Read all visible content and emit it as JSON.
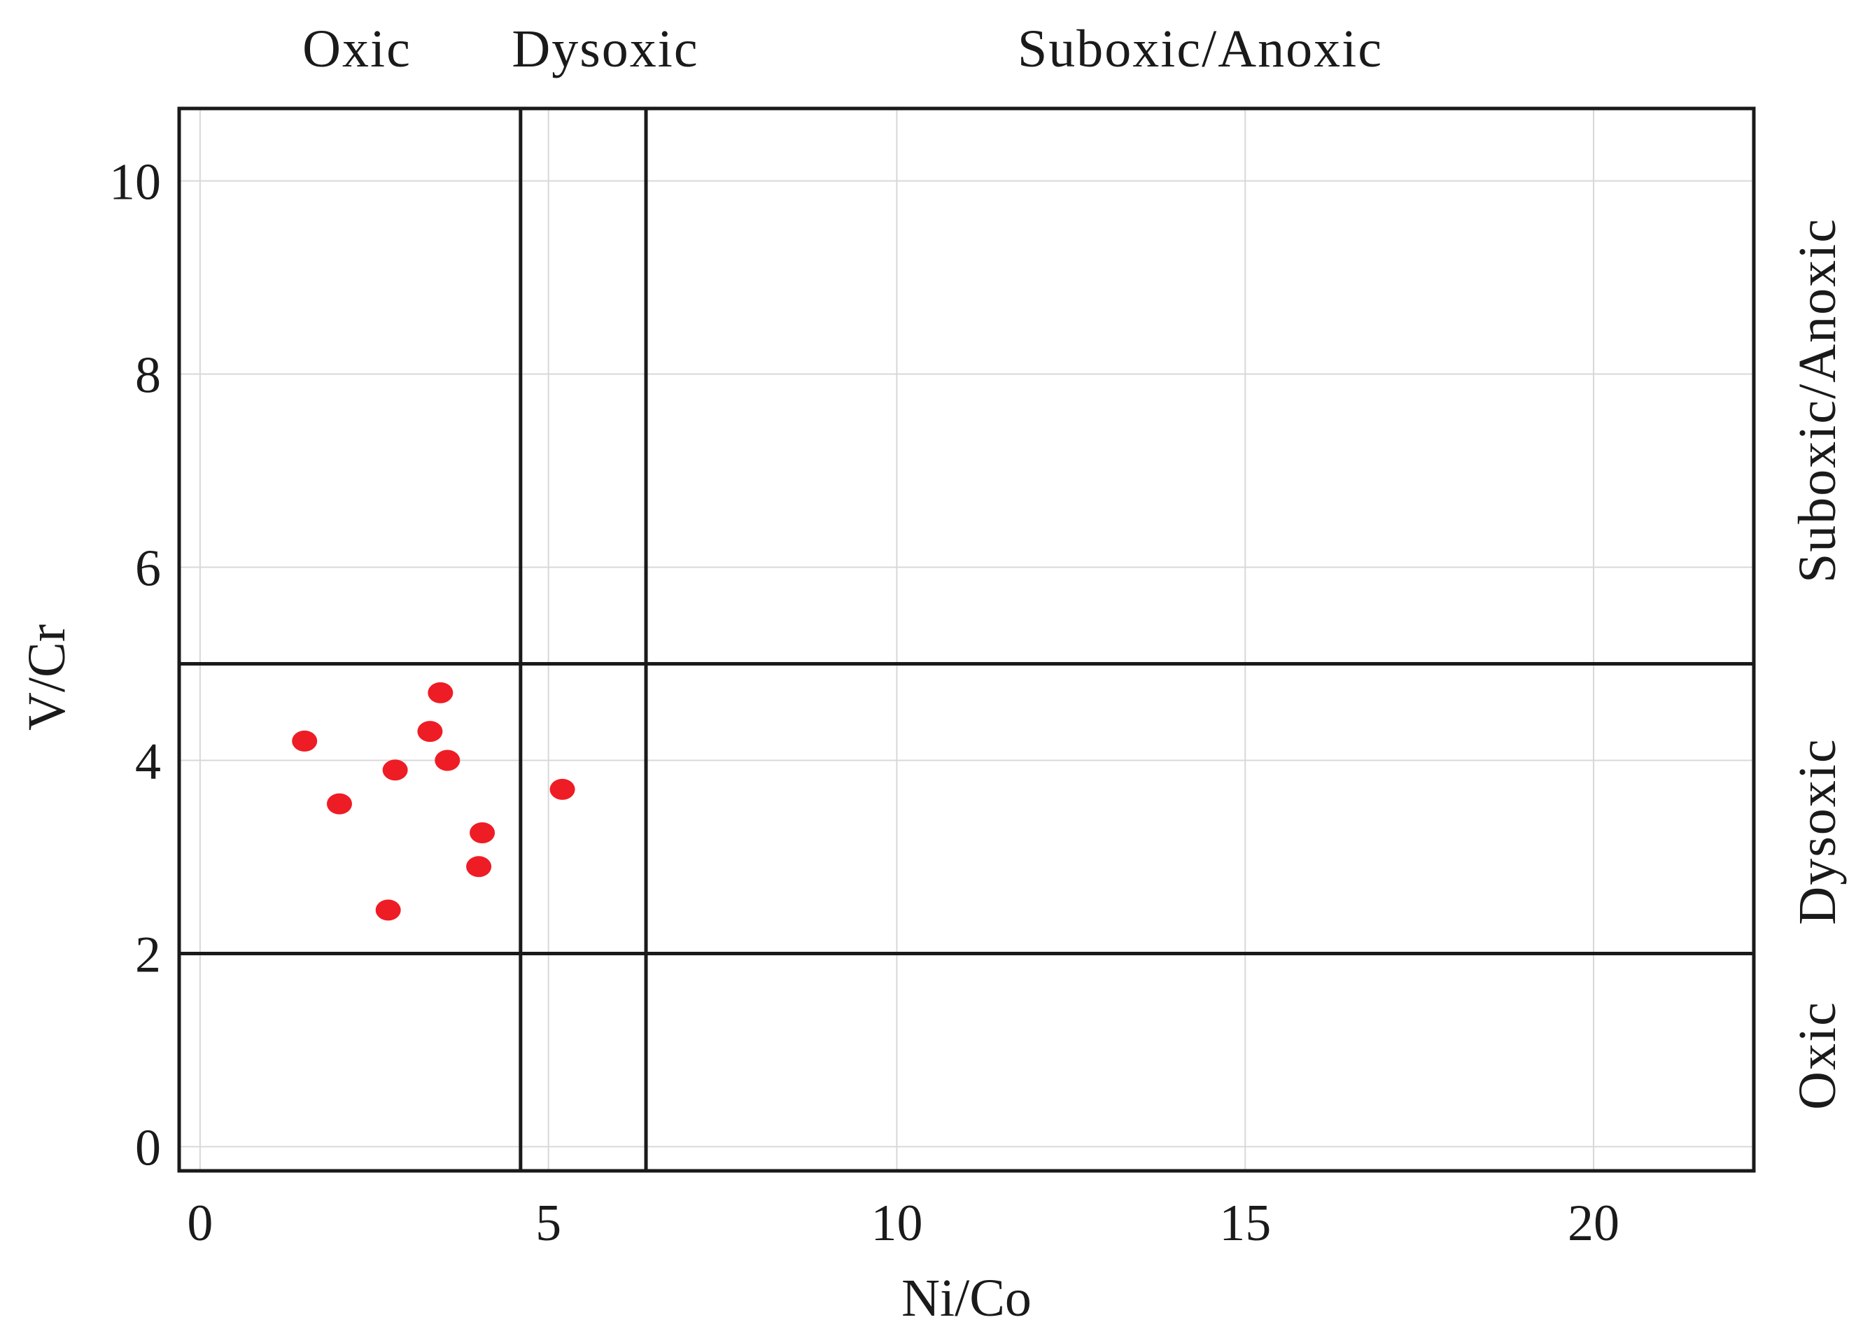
{
  "chart_data": {
    "type": "scatter",
    "xlabel": "Ni/Co",
    "ylabel": "V/Cr",
    "xlim": [
      -0.3,
      22.3
    ],
    "ylim": [
      -0.25,
      10.75
    ],
    "xticks": [
      0,
      5,
      10,
      15,
      20
    ],
    "yticks": [
      0,
      2,
      4,
      6,
      8,
      10
    ],
    "grid": true,
    "legend": "none",
    "x_thresholds": [
      4.6,
      6.4
    ],
    "y_thresholds": [
      2,
      5
    ],
    "top_zone_labels": [
      "Oxic",
      "Dysoxic",
      "Suboxic/Anoxic"
    ],
    "right_zone_labels": [
      "Oxic",
      "Dysoxic",
      "Suboxic/Anoxic"
    ],
    "series": [
      {
        "color": "#ee1c25",
        "points": [
          {
            "x": 1.5,
            "y": 4.2
          },
          {
            "x": 2.0,
            "y": 3.55
          },
          {
            "x": 2.8,
            "y": 3.9
          },
          {
            "x": 3.3,
            "y": 4.3
          },
          {
            "x": 3.45,
            "y": 4.7
          },
          {
            "x": 3.55,
            "y": 4.0
          },
          {
            "x": 5.2,
            "y": 3.7
          },
          {
            "x": 4.05,
            "y": 3.25
          },
          {
            "x": 4.0,
            "y": 2.9
          },
          {
            "x": 2.7,
            "y": 2.45
          }
        ]
      }
    ],
    "colors": {
      "grid": "#d8d8d8",
      "frame": "#1a1a1a",
      "threshold": "#1a1a1a",
      "point": "#ee1c25"
    }
  }
}
